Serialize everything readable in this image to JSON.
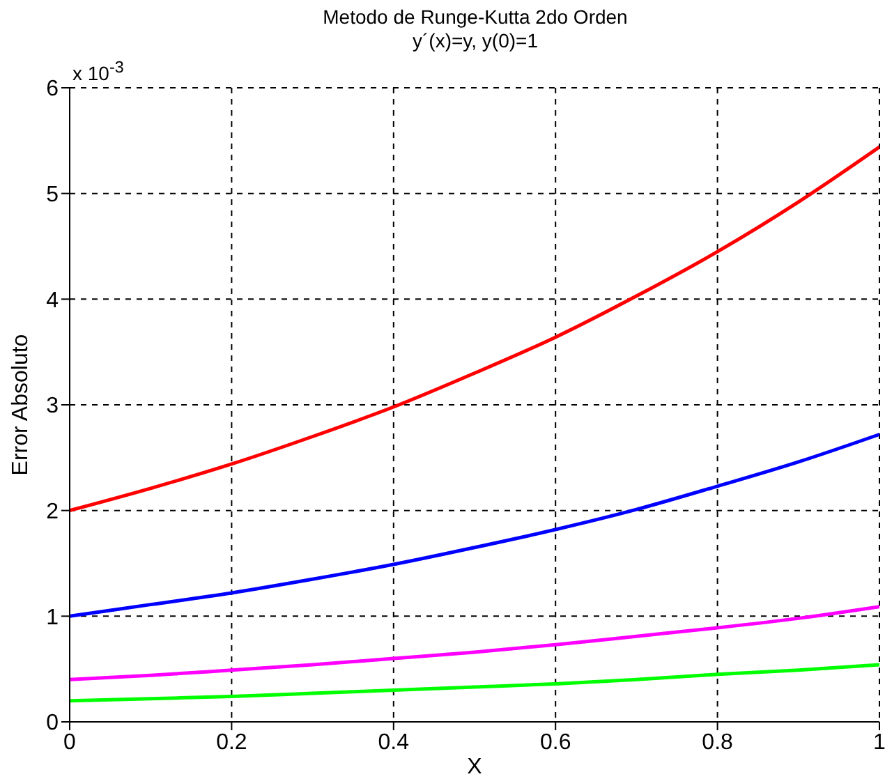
{
  "chart_data": {
    "type": "line",
    "title": "Metodo de Runge-Kutta 2do Orden",
    "subtitle": "y´(x)=y, y(0)=1",
    "xlabel": "X",
    "ylabel": "Error Absoluto",
    "annotations": [
      "x 10$^{-3}$"
    ],
    "x": [
      0,
      0.1,
      0.2,
      0.3,
      0.4,
      0.5,
      0.6,
      0.7,
      0.8,
      0.9,
      1
    ],
    "series": [
      {
        "color": "#ff0000",
        "values": [
          2.0,
          2.21,
          2.44,
          2.7,
          2.98,
          3.3,
          3.64,
          4.03,
          4.45,
          4.92,
          5.44
        ]
      },
      {
        "color": "#0000ff",
        "values": [
          1.0,
          1.11,
          1.22,
          1.35,
          1.49,
          1.65,
          1.82,
          2.01,
          2.23,
          2.46,
          2.72
        ]
      },
      {
        "color": "#ff00ff",
        "values": [
          0.4,
          0.44,
          0.49,
          0.54,
          0.6,
          0.66,
          0.73,
          0.81,
          0.89,
          0.98,
          1.09
        ]
      },
      {
        "color": "#00ff00",
        "values": [
          0.2,
          0.22,
          0.24,
          0.27,
          0.3,
          0.33,
          0.36,
          0.4,
          0.45,
          0.49,
          0.54
        ]
      }
    ],
    "xlim": [
      0,
      1
    ],
    "xticks": [
      0,
      0.2,
      0.4,
      0.6,
      0.8,
      1
    ],
    "ylim": [
      0,
      6
    ],
    "yticks": [
      0,
      1,
      2,
      3,
      4,
      5,
      6
    ],
    "grid": true,
    "marker": "none",
    "line_style": "solid"
  }
}
